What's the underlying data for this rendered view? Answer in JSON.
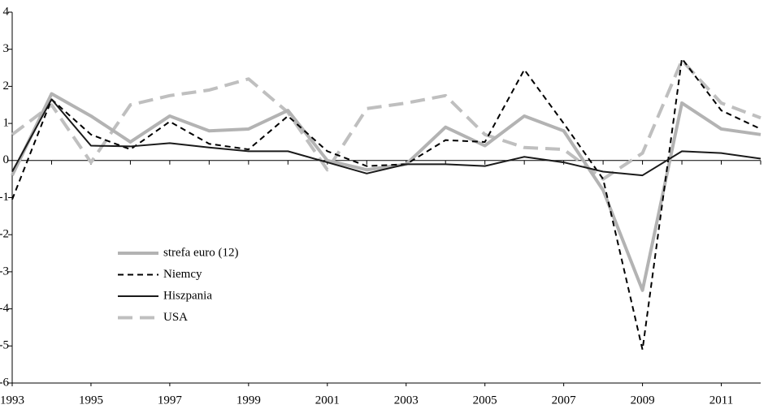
{
  "chart_data": {
    "type": "line",
    "x": [
      1993,
      1994,
      1995,
      1996,
      1997,
      1998,
      1999,
      2000,
      2001,
      2002,
      2003,
      2004,
      2005,
      2006,
      2007,
      2008,
      2009,
      2010,
      2011,
      2012
    ],
    "xlim": [
      1993,
      2012
    ],
    "xticks": [
      1993,
      1995,
      1997,
      1999,
      2001,
      2003,
      2005,
      2007,
      2009,
      2011
    ],
    "ylim": [
      -6,
      4
    ],
    "yticks": [
      -6,
      -5,
      -4,
      -3,
      -2,
      -1,
      0,
      1,
      2,
      3,
      4
    ],
    "legend": "lower-left",
    "series": [
      {
        "name": "strefa euro (12)",
        "color": "#b3b3b3",
        "dash": "solid",
        "width": 4,
        "values": [
          -0.4,
          1.8,
          1.2,
          0.5,
          1.2,
          0.8,
          0.85,
          1.35,
          0.0,
          -0.25,
          -0.1,
          0.9,
          0.4,
          1.2,
          0.8,
          -0.8,
          -3.5,
          1.55,
          0.85,
          0.7
        ]
      },
      {
        "name": "Niemcy",
        "color": "#000000",
        "dash": "dashed",
        "width": 2,
        "values": [
          -1.05,
          1.65,
          0.7,
          0.3,
          1.05,
          0.45,
          0.3,
          1.2,
          0.25,
          -0.15,
          -0.1,
          0.55,
          0.5,
          2.45,
          1.0,
          -0.5,
          -5.1,
          2.75,
          1.35,
          0.85
        ]
      },
      {
        "name": "Hiszpania",
        "color": "#1a1a1a",
        "dash": "solid",
        "width": 2,
        "values": [
          -0.3,
          1.65,
          0.4,
          0.38,
          0.47,
          0.35,
          0.25,
          0.25,
          -0.05,
          -0.35,
          -0.1,
          -0.1,
          -0.15,
          0.1,
          -0.05,
          -0.3,
          -0.4,
          0.25,
          0.2,
          0.05
        ]
      },
      {
        "name": "USA",
        "color": "#bfbfbf",
        "dash": "dashed",
        "width": 4,
        "values": [
          0.7,
          1.5,
          -0.05,
          1.5,
          1.75,
          1.9,
          2.2,
          1.3,
          -0.25,
          1.4,
          1.55,
          1.75,
          0.7,
          0.35,
          0.3,
          -0.5,
          0.2,
          2.7,
          1.55,
          1.15
        ]
      }
    ]
  }
}
